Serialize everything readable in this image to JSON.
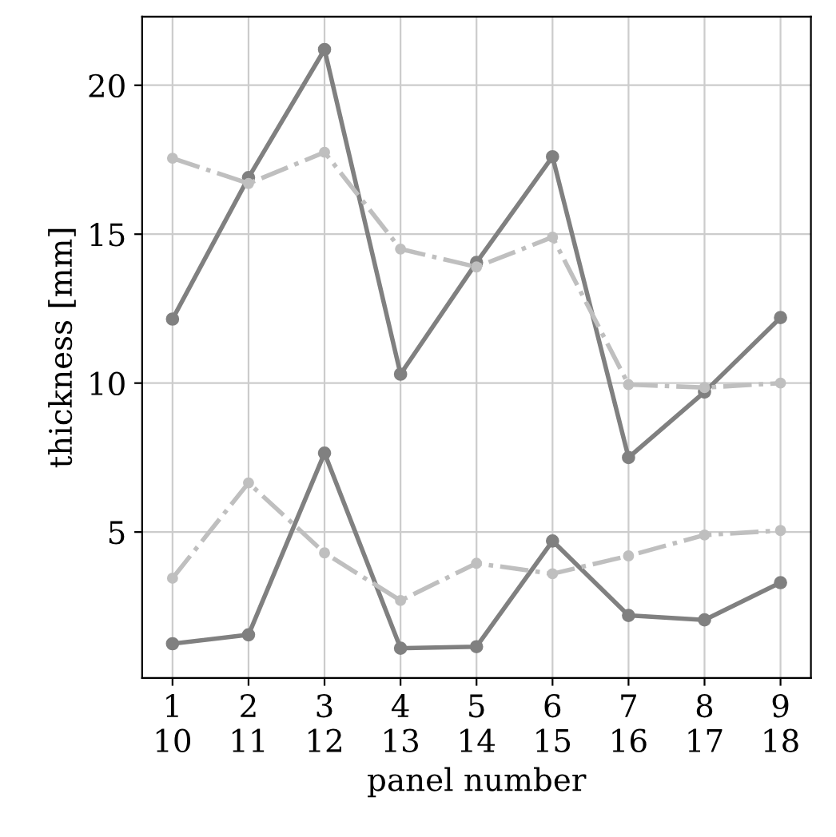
{
  "chart_data": {
    "type": "line",
    "xlabel": "panel number",
    "ylabel": "thickness [mm]",
    "categories": [
      "1\n10",
      "2\n11",
      "3\n12",
      "4\n13",
      "5\n14",
      "6\n15",
      "7\n16",
      "8\n17",
      "9\n18"
    ],
    "series": [
      {
        "color": "#bfbfbf",
        "line_style": "dashdot",
        "values": [
          17.55,
          16.7,
          17.75,
          14.5,
          13.9,
          14.9,
          9.95,
          9.85,
          10.0
        ]
      },
      {
        "color": "#808080",
        "line_style": "solid",
        "values": [
          12.15,
          16.9,
          21.2,
          10.3,
          14.05,
          17.6,
          7.5,
          9.7,
          12.2
        ]
      },
      {
        "color": "#bfbfbf",
        "line_style": "dashdot",
        "values": [
          3.45,
          6.65,
          4.3,
          2.7,
          3.95,
          3.6,
          4.2,
          4.9,
          5.05
        ]
      },
      {
        "color": "#808080",
        "line_style": "solid",
        "values": [
          1.25,
          1.55,
          7.65,
          1.1,
          1.15,
          4.7,
          2.2,
          2.05,
          3.3
        ]
      }
    ],
    "ylim": [
      0.1,
      22.3
    ],
    "yticks": [
      5,
      10,
      15,
      20
    ],
    "grid": true,
    "marker": "circle"
  }
}
